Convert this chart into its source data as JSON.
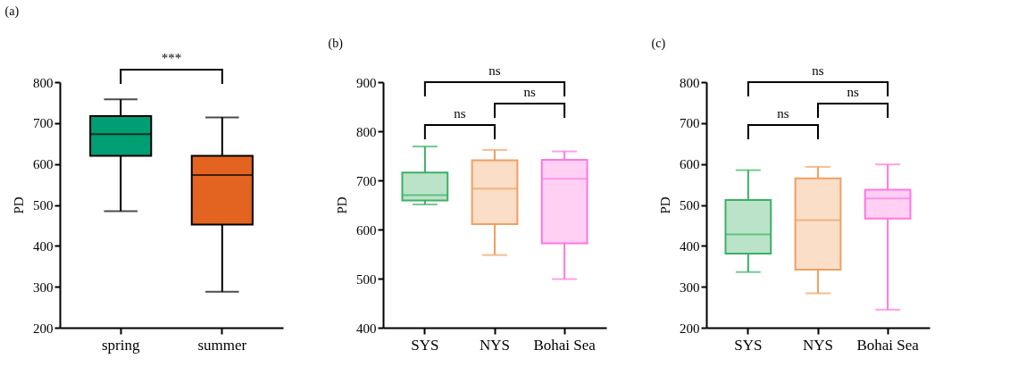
{
  "chart_data": [
    {
      "type": "box",
      "title": "(a)",
      "ylabel": "PD",
      "categories": [
        "spring",
        "summer"
      ],
      "ylim": [
        200,
        800
      ],
      "yticks": [
        200,
        300,
        400,
        500,
        600,
        700,
        800
      ],
      "colors": [
        "#009e73",
        "#e36420"
      ],
      "series": [
        {
          "color": "#000000",
          "boxes": [
            {
              "low": 485,
              "q1": 620,
              "median": 673,
              "q3": 717,
              "high": 758
            },
            {
              "low": 288,
              "q1": 452,
              "median": 573,
              "q3": 620,
              "high": 714
            }
          ]
        }
      ],
      "annotations": [
        "***"
      ]
    },
    {
      "type": "box",
      "title": "(b)",
      "ylabel": "PD",
      "categories": [
        "SYS",
        "NYS",
        "Bohai Sea"
      ],
      "ylim": [
        400,
        900
      ],
      "yticks": [
        400,
        500,
        600,
        700,
        800,
        900
      ],
      "colors": [
        "#3cb064",
        "#f0a060",
        "#ff77e0"
      ],
      "series": [
        {
          "boxes": [
            {
              "low": 651,
              "q1": 659,
              "median": 670,
              "q3": 716,
              "high": 769
            },
            {
              "low": 548,
              "q1": 611,
              "median": 683,
              "q3": 741,
              "high": 762
            },
            {
              "low": 499,
              "q1": 572,
              "median": 703,
              "q3": 742,
              "high": 759
            }
          ]
        }
      ],
      "annotations": [
        "ns",
        "ns",
        "ns"
      ]
    },
    {
      "type": "box",
      "title": "(c)",
      "ylabel": "PD",
      "categories": [
        "SYS",
        "NYS",
        "Bohai Sea"
      ],
      "ylim": [
        200,
        800
      ],
      "yticks": [
        200,
        300,
        400,
        500,
        600,
        700,
        800
      ],
      "colors": [
        "#3cb064",
        "#f0a060",
        "#ff77e0"
      ],
      "series": [
        {
          "boxes": [
            {
              "low": 336,
              "q1": 381,
              "median": 428,
              "q3": 512,
              "high": 585
            },
            {
              "low": 284,
              "q1": 342,
              "median": 463,
              "q3": 565,
              "high": 593
            },
            {
              "low": 244,
              "q1": 467,
              "median": 516,
              "q3": 537,
              "high": 599
            }
          ]
        }
      ],
      "annotations": [
        "ns",
        "ns",
        "ns"
      ]
    }
  ]
}
